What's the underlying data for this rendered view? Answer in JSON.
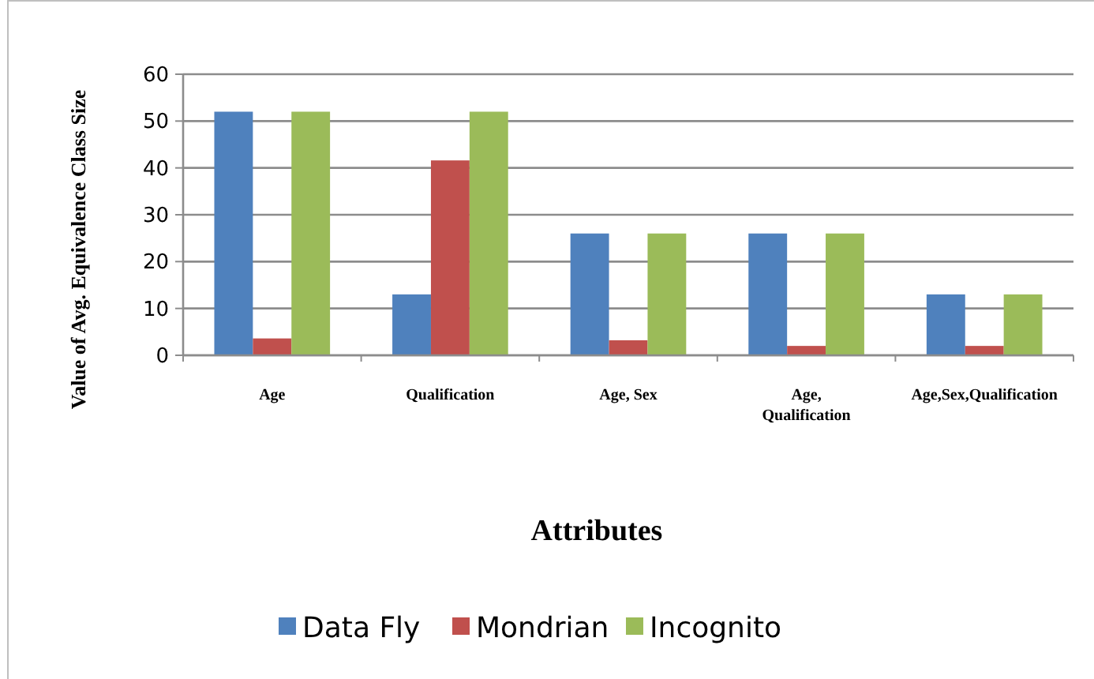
{
  "chart_data": {
    "type": "bar",
    "xlabel": "Attributes",
    "ylabel": "Value of Avg. Equivalence Class Size",
    "categories": [
      "Age",
      "Qualification",
      "Age, Sex",
      "Age, Qualification",
      "Age,Sex,Qualification"
    ],
    "series": [
      {
        "name": "Data Fly",
        "color": "#4f81bd",
        "values": [
          52,
          13,
          26,
          26,
          13
        ]
      },
      {
        "name": "Mondrian",
        "color": "#c0504d",
        "values": [
          3.6,
          41.6,
          3.2,
          2,
          2
        ]
      },
      {
        "name": "Incognito",
        "color": "#9bbb59",
        "values": [
          52,
          52,
          26,
          26,
          13
        ]
      }
    ],
    "ylim": [
      0,
      60
    ],
    "yticks": [
      0,
      10,
      20,
      30,
      40,
      50,
      60
    ],
    "grid": "y",
    "legend": "bottom"
  }
}
